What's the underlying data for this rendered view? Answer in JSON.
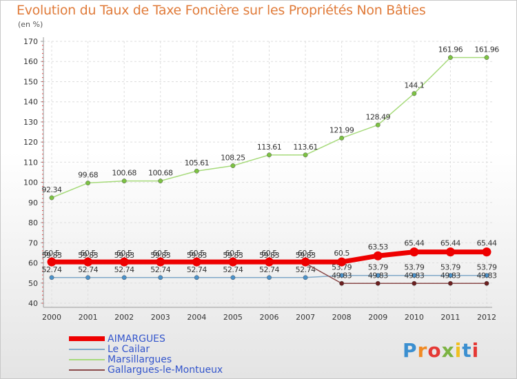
{
  "title": "Evolution du Taux de Taxe Foncière sur les Propriétés Non Bâties",
  "unit_label": "(en %)",
  "logo": "Proxiti",
  "chart_data": {
    "type": "line",
    "x": [
      "2000",
      "2001",
      "2002",
      "2003",
      "2004",
      "2005",
      "2006",
      "2007",
      "2008",
      "2009",
      "2010",
      "2011",
      "2012"
    ],
    "ylim": [
      40,
      170
    ],
    "yticks": [
      "40",
      "50",
      "60",
      "70",
      "80",
      "90",
      "100",
      "110",
      "120",
      "130",
      "140",
      "150",
      "160",
      "170"
    ],
    "grid": true,
    "legend_placement": "bottom-left",
    "series": [
      {
        "name": "Marsillargues",
        "color": "#a6da7a",
        "marker": "#7cc242",
        "values": [
          92.34,
          99.68,
          100.68,
          100.68,
          105.61,
          108.25,
          113.61,
          113.61,
          121.99,
          128.49,
          144.1,
          161.96,
          161.96
        ],
        "labels": [
          "92.34",
          "99.68",
          "100.68",
          "100.68",
          "105.61",
          "108.25",
          "113.61",
          "113.61",
          "121.99",
          "128.49",
          "144.1",
          "161.96",
          "161.96"
        ]
      },
      {
        "name": "Le Cailar",
        "color": "#7fa8c8",
        "marker": "#4a90c8",
        "values": [
          52.74,
          52.74,
          52.74,
          52.74,
          52.74,
          52.74,
          52.74,
          52.74,
          53.79,
          53.79,
          53.79,
          53.79,
          53.79
        ],
        "labels": [
          "52.74",
          "52.74",
          "52.74",
          "52.74",
          "52.74",
          "52.74",
          "52.74",
          "52.74",
          "53.79",
          "53.79",
          "53.79",
          "53.79",
          "53.79"
        ]
      },
      {
        "name": "Gallargues-le-Montueux",
        "color": "#8a4a4a",
        "marker": "#6b1f1f",
        "values": [
          59.83,
          59.83,
          59.83,
          59.83,
          59.83,
          59.83,
          59.83,
          59.83,
          49.83,
          49.83,
          49.83,
          49.83,
          49.83
        ],
        "labels": [
          "59.83",
          "59.83",
          "59.83",
          "59.83",
          "59.83",
          "59.83",
          "59.83",
          "59.83",
          "49.83",
          "49.83",
          "49.83",
          "49.83",
          "49.83"
        ]
      },
      {
        "name": "AIMARGUES",
        "color": "#ee0000",
        "marker": "#ee0000",
        "values": [
          60.5,
          60.5,
          60.5,
          60.5,
          60.5,
          60.5,
          60.5,
          60.5,
          60.5,
          63.53,
          65.44,
          65.44,
          65.44
        ],
        "labels": [
          "60.5",
          "60.5",
          "60.5",
          "60.5",
          "60.5",
          "60.5",
          "60.5",
          "60.5",
          "60.5",
          "63.53",
          "65.44",
          "65.44",
          "65.44"
        ]
      }
    ]
  },
  "legend": [
    {
      "name": "AIMARGUES",
      "color": "#ee0000"
    },
    {
      "name": "Le Cailar",
      "color": "#7fa8c8"
    },
    {
      "name": "Marsillargues",
      "color": "#a6da7a"
    },
    {
      "name": "Gallargues-le-Montueux",
      "color": "#8a4a4a"
    }
  ]
}
